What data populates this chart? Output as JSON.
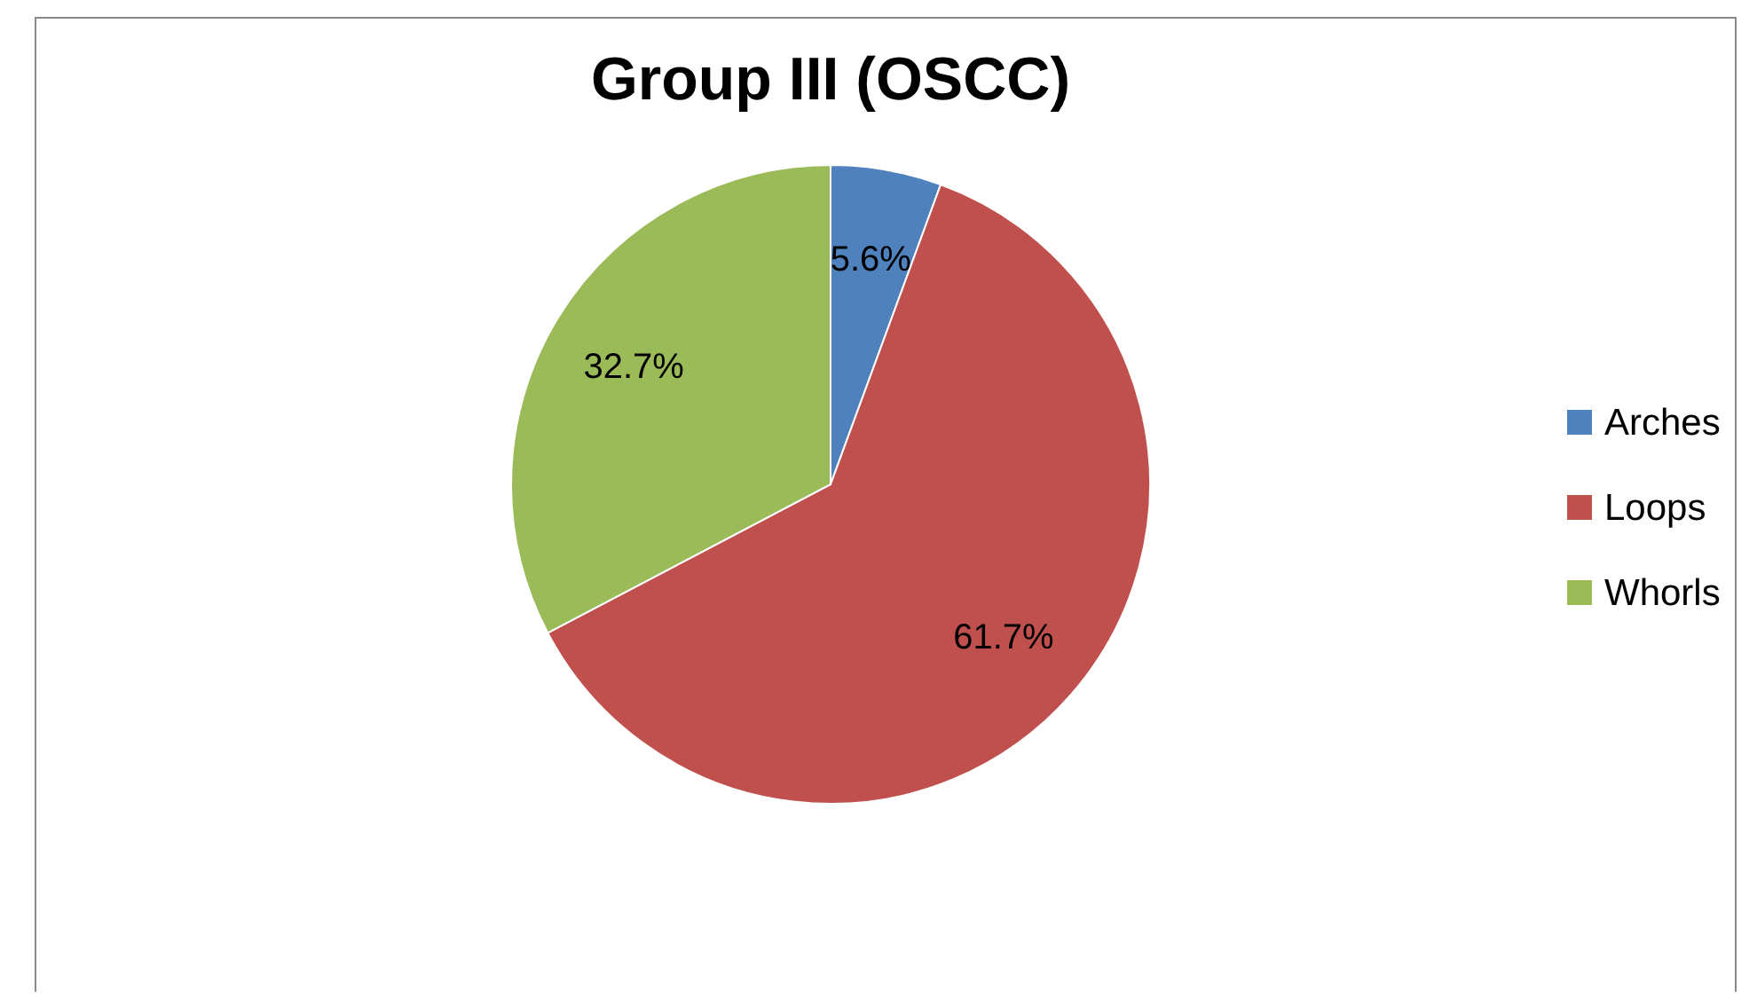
{
  "chart_data": {
    "type": "pie",
    "title": "Group III (OSCC)",
    "categories": [
      "Arches",
      "Loops",
      "Whorls"
    ],
    "values": [
      5.6,
      61.7,
      32.7
    ],
    "value_labels": [
      "5.6%",
      "61.7%",
      "32.7%"
    ],
    "colors": [
      "#4f81bd",
      "#c0504d",
      "#9bbb59"
    ],
    "legend": "right"
  }
}
